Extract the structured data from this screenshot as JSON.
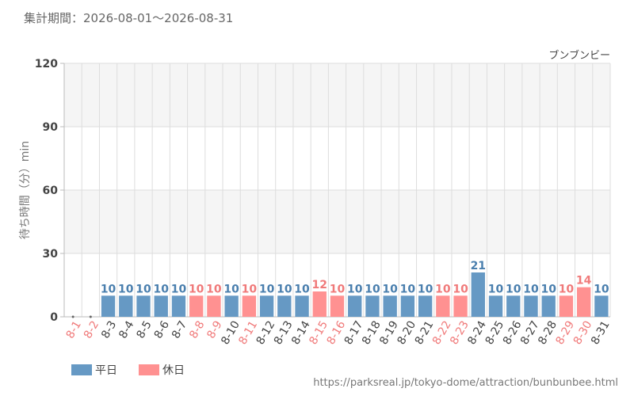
{
  "header": {
    "period": "集計期間：2026-08-01～2026-08-31"
  },
  "source_url": "https://parksreal.jp/tokyo-dome/attraction/bunbunbee.html",
  "colors": {
    "weekday": "#6699c4",
    "holiday": "#ff9191",
    "weekday_text": "#4a7fae",
    "holiday_text": "#f07a7a",
    "band": "#f5f5f5",
    "grid": "#dddddd",
    "axis": "#bbbbbb"
  },
  "chart_data": {
    "type": "bar",
    "title": "ブンブンビー",
    "xlabel": "",
    "ylabel": "待ち時間（分）min",
    "ylim": [
      0,
      120
    ],
    "yticks": [
      0,
      30,
      60,
      90,
      120
    ],
    "grid": true,
    "legend_position": "bottom-left",
    "categories": [
      "8-1",
      "8-2",
      "8-3",
      "8-4",
      "8-5",
      "8-6",
      "8-7",
      "8-8",
      "8-9",
      "8-10",
      "8-11",
      "8-12",
      "8-13",
      "8-14",
      "8-15",
      "8-16",
      "8-17",
      "8-18",
      "8-19",
      "8-20",
      "8-21",
      "8-22",
      "8-23",
      "8-24",
      "8-25",
      "8-26",
      "8-27",
      "8-28",
      "8-29",
      "8-30",
      "8-31"
    ],
    "values": [
      null,
      null,
      10,
      10,
      10,
      10,
      10,
      10,
      10,
      10,
      10,
      10,
      10,
      10,
      12,
      10,
      10,
      10,
      10,
      10,
      10,
      10,
      10,
      21,
      10,
      10,
      10,
      10,
      10,
      14,
      10
    ],
    "day_type": [
      "holiday",
      "holiday",
      "weekday",
      "weekday",
      "weekday",
      "weekday",
      "weekday",
      "holiday",
      "holiday",
      "weekday",
      "holiday",
      "weekday",
      "weekday",
      "weekday",
      "holiday",
      "holiday",
      "weekday",
      "weekday",
      "weekday",
      "weekday",
      "weekday",
      "holiday",
      "holiday",
      "weekday",
      "weekday",
      "weekday",
      "weekday",
      "weekday",
      "holiday",
      "holiday",
      "weekday"
    ],
    "legend": [
      {
        "key": "weekday",
        "label": "平日"
      },
      {
        "key": "holiday",
        "label": "休日"
      }
    ]
  }
}
